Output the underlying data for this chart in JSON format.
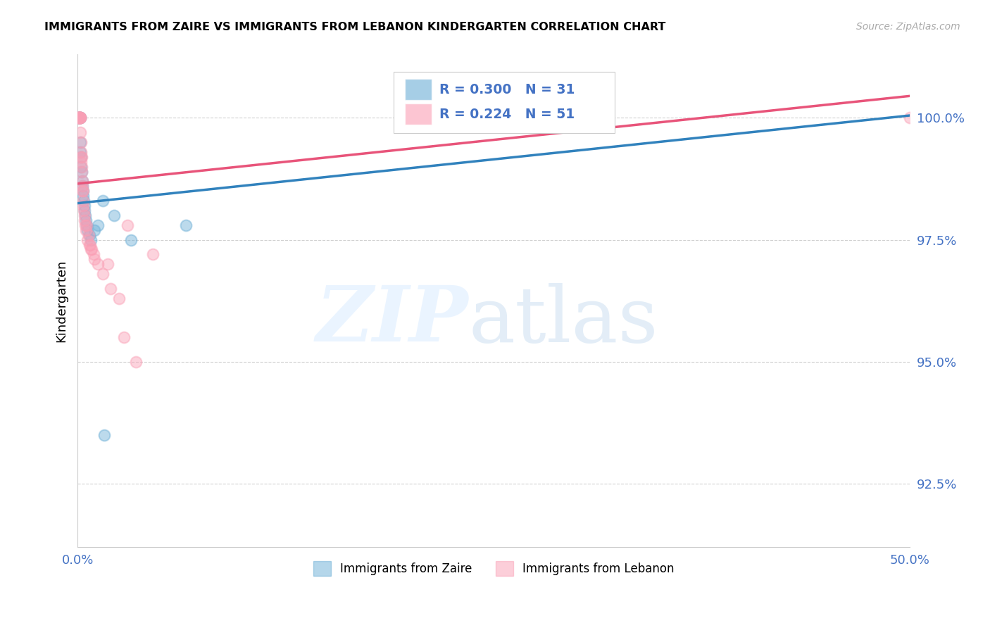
{
  "title": "IMMIGRANTS FROM ZAIRE VS IMMIGRANTS FROM LEBANON KINDERGARTEN CORRELATION CHART",
  "source": "Source: ZipAtlas.com",
  "ylabel": "Kindergarten",
  "ylabel_ticks": [
    "92.5%",
    "95.0%",
    "97.5%",
    "100.0%"
  ],
  "ylabel_values": [
    92.5,
    95.0,
    97.5,
    100.0
  ],
  "xmin": 0.0,
  "xmax": 50.0,
  "ymin": 91.2,
  "ymax": 101.3,
  "zaire_color": "#6baed6",
  "lebanon_color": "#fa9fb5",
  "zaire_line_color": "#3182bd",
  "lebanon_line_color": "#e8547a",
  "zaire_x": [
    0.05,
    0.08,
    0.1,
    0.12,
    0.13,
    0.15,
    0.17,
    0.18,
    0.2,
    0.22,
    0.25,
    0.27,
    0.3,
    0.32,
    0.35,
    0.38,
    0.4,
    0.42,
    0.45,
    0.5,
    0.55,
    0.6,
    0.7,
    0.8,
    1.0,
    1.2,
    1.5,
    2.2,
    3.2,
    6.5,
    1.6
  ],
  "zaire_y": [
    100.0,
    100.0,
    100.0,
    100.0,
    100.0,
    100.0,
    99.5,
    99.3,
    99.2,
    99.0,
    98.9,
    98.7,
    98.6,
    98.5,
    98.4,
    98.3,
    98.2,
    98.1,
    98.0,
    97.9,
    97.8,
    97.7,
    97.6,
    97.5,
    97.7,
    97.8,
    98.3,
    98.0,
    97.5,
    97.8,
    93.5
  ],
  "lebanon_x": [
    0.03,
    0.05,
    0.07,
    0.08,
    0.09,
    0.1,
    0.11,
    0.12,
    0.13,
    0.14,
    0.15,
    0.16,
    0.17,
    0.18,
    0.19,
    0.2,
    0.21,
    0.22,
    0.23,
    0.25,
    0.27,
    0.28,
    0.3,
    0.32,
    0.35,
    0.38,
    0.4,
    0.42,
    0.45,
    0.5,
    0.6,
    0.7,
    0.8,
    1.0,
    1.2,
    1.5,
    2.0,
    2.5,
    2.8,
    3.5,
    4.5,
    0.25,
    0.35,
    0.55,
    0.65,
    0.75,
    0.85,
    0.95,
    1.8,
    3.0,
    50.0
  ],
  "lebanon_y": [
    100.0,
    100.0,
    100.0,
    100.0,
    100.0,
    100.0,
    100.0,
    100.0,
    100.0,
    100.0,
    100.0,
    100.0,
    100.0,
    99.7,
    99.5,
    99.3,
    99.2,
    99.1,
    99.0,
    98.9,
    98.7,
    98.6,
    98.5,
    98.3,
    98.2,
    98.1,
    98.0,
    97.9,
    97.8,
    97.7,
    97.5,
    97.4,
    97.3,
    97.1,
    97.0,
    96.8,
    96.5,
    96.3,
    95.5,
    95.0,
    97.2,
    99.2,
    98.5,
    97.8,
    97.6,
    97.4,
    97.3,
    97.2,
    97.0,
    97.8,
    100.0
  ],
  "legend_zaire_R": "0.300",
  "legend_zaire_N": "31",
  "legend_lebanon_R": "0.224",
  "legend_lebanon_N": "51"
}
